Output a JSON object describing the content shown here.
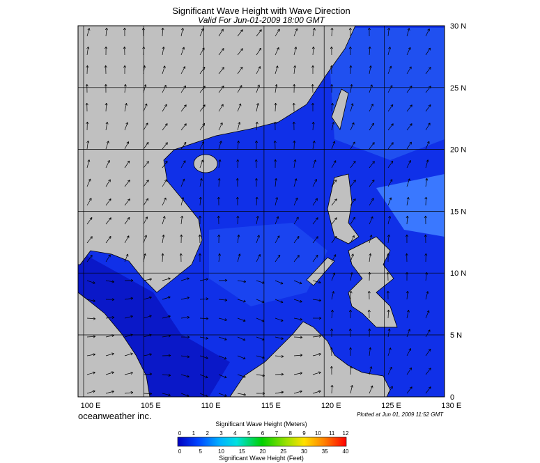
{
  "header": {
    "title": "Significant Wave Height with Wave Direction",
    "subtitle": "Valid For Jun-01-2009 18:00 GMT"
  },
  "map": {
    "lat_labels": [
      "30 N",
      "25 N",
      "20 N",
      "15 N",
      "10 N",
      "5 N",
      "0"
    ],
    "lon_labels": [
      "100 E",
      "105 E",
      "110 E",
      "115 E",
      "120 E",
      "125 E",
      "130 E"
    ]
  },
  "footer": {
    "brand": "oceanweather inc.",
    "plotted": "Plotted at Jun 01, 2009 11:52 GMT"
  },
  "legend": {
    "meters_title": "Significant Wave Height (Meters)",
    "meters_ticks": [
      "0",
      "1",
      "2",
      "3",
      "4",
      "5",
      "6",
      "7",
      "8",
      "9",
      "10",
      "11",
      "12"
    ],
    "feet_ticks": [
      "0",
      "5",
      "10",
      "15",
      "20",
      "25",
      "30",
      "35",
      "40"
    ],
    "feet_title": "Significant Wave Height (Feet)"
  }
}
